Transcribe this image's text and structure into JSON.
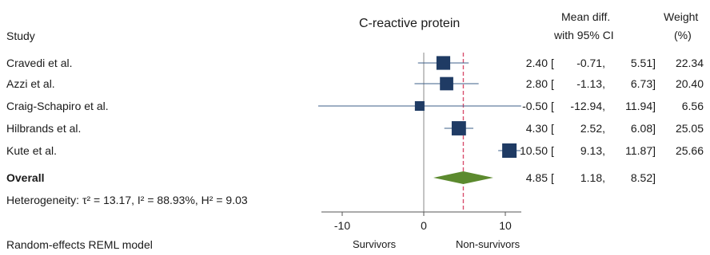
{
  "header": {
    "study": "Study",
    "title": "C-reactive protein",
    "effect_line1": "Mean diff.",
    "effect_line2": "with 95% CI",
    "weight_line1": "Weight",
    "weight_line2": "(%)"
  },
  "footer": {
    "heterogeneity": "Heterogeneity: τ² = 13.17, I² = 88.93%, H² = 9.03",
    "model": "Random-effects REML model",
    "label_left": "Survivors",
    "label_right": "Non-survivors"
  },
  "colors": {
    "marker": "#1f3b64",
    "ci_line": "#3e5f8a",
    "diamond": "#5c8a2e",
    "overall_line": "#d9506e",
    "axis": "#555555"
  },
  "chart_data": {
    "type": "forest",
    "xlim": [
      -12.5,
      12
    ],
    "xticks": [
      -10,
      0,
      10
    ],
    "null_line": 0,
    "studies": [
      {
        "name": "Cravedi et al.",
        "effect": 2.4,
        "lo": -0.71,
        "hi": 5.51,
        "weight": 22.34,
        "effect_txt": "2.40",
        "lo_txt": "-0.71,",
        "hi_txt": "5.51]",
        "weight_txt": "22.34"
      },
      {
        "name": "Azzi et al.",
        "effect": 2.8,
        "lo": -1.13,
        "hi": 6.73,
        "weight": 20.4,
        "effect_txt": "2.80",
        "lo_txt": "-1.13,",
        "hi_txt": "6.73]",
        "weight_txt": "20.40"
      },
      {
        "name": "Craig-Schapiro et al.",
        "effect": -0.5,
        "lo": -12.94,
        "hi": 11.94,
        "weight": 6.56,
        "effect_txt": "-0.50",
        "lo_txt": "-12.94,",
        "hi_txt": "11.94]",
        "weight_txt": "6.56"
      },
      {
        "name": "Hilbrands et al.",
        "effect": 4.3,
        "lo": 2.52,
        "hi": 6.08,
        "weight": 25.05,
        "effect_txt": "4.30",
        "lo_txt": "2.52,",
        "hi_txt": "6.08]",
        "weight_txt": "25.05"
      },
      {
        "name": "Kute et al.",
        "effect": 10.5,
        "lo": 9.13,
        "hi": 11.87,
        "weight": 25.66,
        "effect_txt": "10.50",
        "lo_txt": "9.13,",
        "hi_txt": "11.87]",
        "weight_txt": "25.66"
      }
    ],
    "overall": {
      "name": "Overall",
      "effect": 4.85,
      "lo": 1.18,
      "hi": 8.52,
      "effect_txt": "4.85",
      "lo_txt": "1.18,",
      "hi_txt": "8.52]"
    }
  }
}
